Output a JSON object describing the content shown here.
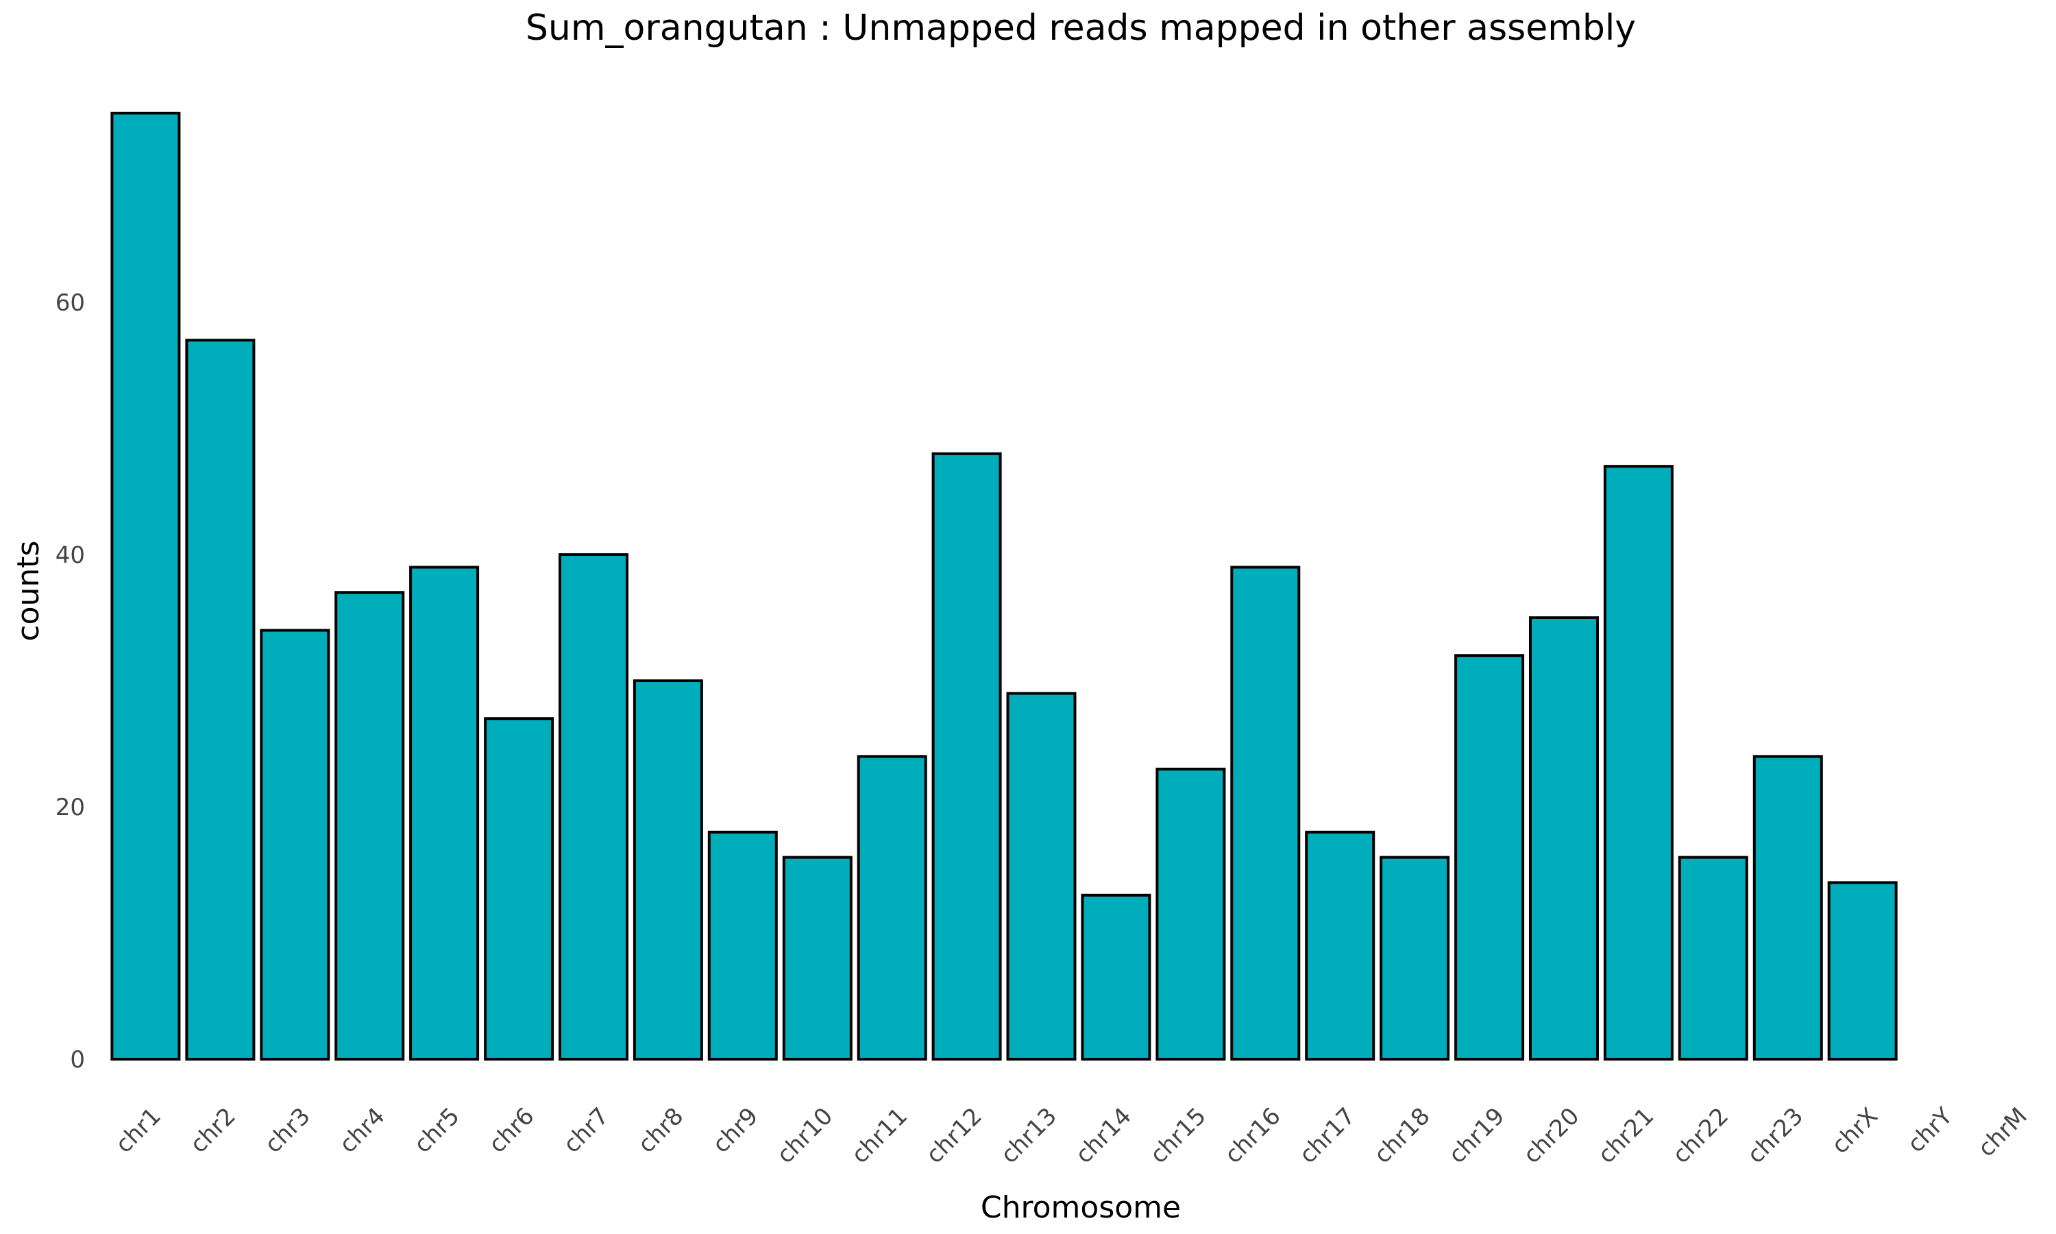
{
  "chart_data": {
    "type": "bar",
    "title": "Sum_orangutan : Unmapped reads mapped in other assembly",
    "xlabel": "Chromosome",
    "ylabel": "counts",
    "categories": [
      "chr1",
      "chr2",
      "chr3",
      "chr4",
      "chr5",
      "chr6",
      "chr7",
      "chr8",
      "chr9",
      "chr10",
      "chr11",
      "chr12",
      "chr13",
      "chr14",
      "chr15",
      "chr16",
      "chr17",
      "chr18",
      "chr19",
      "chr20",
      "chr21",
      "chr22",
      "chr23",
      "chrX",
      "chrY",
      "chrM"
    ],
    "values": [
      75,
      57,
      34,
      37,
      39,
      27,
      40,
      30,
      18,
      16,
      24,
      48,
      29,
      13,
      23,
      39,
      18,
      16,
      32,
      35,
      47,
      16,
      24,
      14,
      0,
      0
    ],
    "yticks": [
      0,
      20,
      40,
      60
    ],
    "ylim": [
      0,
      75
    ],
    "grid": false,
    "legend": "none",
    "bar_color": "#00ADBA",
    "edge_color": "#000000"
  }
}
